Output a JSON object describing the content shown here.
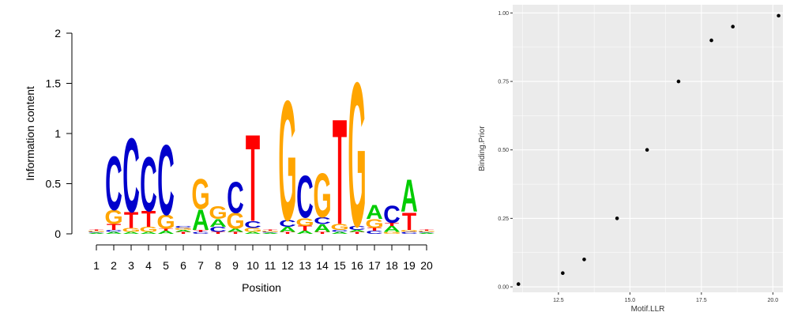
{
  "colors": {
    "A": "#00cc00",
    "C": "#0000cc",
    "G": "#ffa500",
    "T": "#ff0000",
    "panel_bg": "#ebebeb",
    "grid": "#ffffff",
    "point": "#000000"
  },
  "chart_data": [
    {
      "type": "sequence-logo",
      "xlabel": "Position",
      "ylabel": "Information content",
      "ylim": [
        0,
        2
      ],
      "y_ticks": [
        "0",
        "0.5",
        "1",
        "1.5",
        "2"
      ],
      "positions": [
        "1",
        "2",
        "3",
        "4",
        "5",
        "6",
        "7",
        "8",
        "9",
        "10",
        "11",
        "12",
        "13",
        "14",
        "15",
        "16",
        "17",
        "18",
        "19",
        "20"
      ],
      "stacks": [
        [
          {
            "l": "A",
            "h": 0.01
          },
          {
            "l": "C",
            "h": 0.01
          },
          {
            "l": "G",
            "h": 0.01
          },
          {
            "l": "T",
            "h": 0.01
          }
        ],
        [
          {
            "l": "A",
            "h": 0.02
          },
          {
            "l": "C",
            "h": 0.02
          },
          {
            "l": "T",
            "h": 0.06
          },
          {
            "l": "G",
            "h": 0.14
          },
          {
            "l": "C",
            "h": 0.55
          }
        ],
        [
          {
            "l": "A",
            "h": 0.02
          },
          {
            "l": "G",
            "h": 0.04
          },
          {
            "l": "T",
            "h": 0.16
          },
          {
            "l": "C",
            "h": 0.76
          }
        ],
        [
          {
            "l": "A",
            "h": 0.02
          },
          {
            "l": "G",
            "h": 0.05
          },
          {
            "l": "T",
            "h": 0.16
          },
          {
            "l": "C",
            "h": 0.56
          }
        ],
        [
          {
            "l": "A",
            "h": 0.03
          },
          {
            "l": "T",
            "h": 0.02
          },
          {
            "l": "G",
            "h": 0.14
          },
          {
            "l": "C",
            "h": 0.72
          }
        ],
        [
          {
            "l": "T",
            "h": 0.02
          },
          {
            "l": "A",
            "h": 0.02
          },
          {
            "l": "G",
            "h": 0.02
          },
          {
            "l": "C",
            "h": 0.02
          }
        ],
        [
          {
            "l": "C",
            "h": 0.02
          },
          {
            "l": "T",
            "h": 0.02
          },
          {
            "l": "A",
            "h": 0.21
          },
          {
            "l": "G",
            "h": 0.31
          }
        ],
        [
          {
            "l": "T",
            "h": 0.02
          },
          {
            "l": "C",
            "h": 0.05
          },
          {
            "l": "A",
            "h": 0.08
          },
          {
            "l": "G",
            "h": 0.13
          }
        ],
        [
          {
            "l": "T",
            "h": 0.02
          },
          {
            "l": "A",
            "h": 0.03
          },
          {
            "l": "G",
            "h": 0.16
          },
          {
            "l": "C",
            "h": 0.32
          }
        ],
        [
          {
            "l": "A",
            "h": 0.02
          },
          {
            "l": "G",
            "h": 0.04
          },
          {
            "l": "C",
            "h": 0.07
          },
          {
            "l": "T",
            "h": 0.89
          }
        ],
        [
          {
            "l": "A",
            "h": 0.01
          },
          {
            "l": "C",
            "h": 0.01
          },
          {
            "l": "G",
            "h": 0.01
          },
          {
            "l": "T",
            "h": 0.01
          }
        ],
        [
          {
            "l": "T",
            "h": 0.02
          },
          {
            "l": "A",
            "h": 0.05
          },
          {
            "l": "C",
            "h": 0.07
          },
          {
            "l": "G",
            "h": 1.23
          }
        ],
        [
          {
            "l": "A",
            "h": 0.03
          },
          {
            "l": "T",
            "h": 0.05
          },
          {
            "l": "G",
            "h": 0.08
          },
          {
            "l": "C",
            "h": 0.43
          }
        ],
        [
          {
            "l": "T",
            "h": 0.02
          },
          {
            "l": "A",
            "h": 0.08
          },
          {
            "l": "C",
            "h": 0.07
          },
          {
            "l": "G",
            "h": 0.45
          }
        ],
        [
          {
            "l": "A",
            "h": 0.02
          },
          {
            "l": "C",
            "h": 0.02
          },
          {
            "l": "G",
            "h": 0.06
          },
          {
            "l": "T",
            "h": 1.08
          }
        ],
        [
          {
            "l": "T",
            "h": 0.02
          },
          {
            "l": "A",
            "h": 0.02
          },
          {
            "l": "C",
            "h": 0.04
          },
          {
            "l": "G",
            "h": 1.48
          }
        ],
        [
          {
            "l": "C",
            "h": 0.03
          },
          {
            "l": "T",
            "h": 0.03
          },
          {
            "l": "G",
            "h": 0.09
          },
          {
            "l": "A",
            "h": 0.14
          }
        ],
        [
          {
            "l": "G",
            "h": 0.02
          },
          {
            "l": "A",
            "h": 0.06
          },
          {
            "l": "T",
            "h": 0.03
          },
          {
            "l": "C",
            "h": 0.18
          }
        ],
        [
          {
            "l": "C",
            "h": 0.02
          },
          {
            "l": "G",
            "h": 0.02
          },
          {
            "l": "T",
            "h": 0.18
          },
          {
            "l": "A",
            "h": 0.33
          }
        ],
        [
          {
            "l": "A",
            "h": 0.01
          },
          {
            "l": "C",
            "h": 0.01
          },
          {
            "l": "G",
            "h": 0.01
          },
          {
            "l": "T",
            "h": 0.01
          }
        ]
      ]
    },
    {
      "type": "scatter",
      "xlabel": "Motif.LLR",
      "ylabel": "Binding.Prior",
      "xlim": [
        10.9,
        20.35
      ],
      "ylim": [
        -0.02,
        1.03
      ],
      "x_ticks": [
        {
          "v": 12.5,
          "t": "12.5"
        },
        {
          "v": 15,
          "t": "15.0"
        },
        {
          "v": 17.5,
          "t": "17.5"
        },
        {
          "v": 20,
          "t": "20.0"
        }
      ],
      "y_ticks": [
        {
          "v": 0,
          "t": "0.00"
        },
        {
          "v": 0.25,
          "t": "0.25"
        },
        {
          "v": 0.5,
          "t": "0.50"
        },
        {
          "v": 0.75,
          "t": "0.75"
        },
        {
          "v": 1,
          "t": "1.00"
        }
      ],
      "grid": true,
      "points": [
        {
          "x": 11.1,
          "y": 0.01
        },
        {
          "x": 12.65,
          "y": 0.05
        },
        {
          "x": 13.4,
          "y": 0.1
        },
        {
          "x": 14.55,
          "y": 0.25
        },
        {
          "x": 15.6,
          "y": 0.5
        },
        {
          "x": 16.7,
          "y": 0.75
        },
        {
          "x": 17.85,
          "y": 0.9
        },
        {
          "x": 18.6,
          "y": 0.95
        },
        {
          "x": 20.2,
          "y": 0.99
        }
      ]
    }
  ]
}
